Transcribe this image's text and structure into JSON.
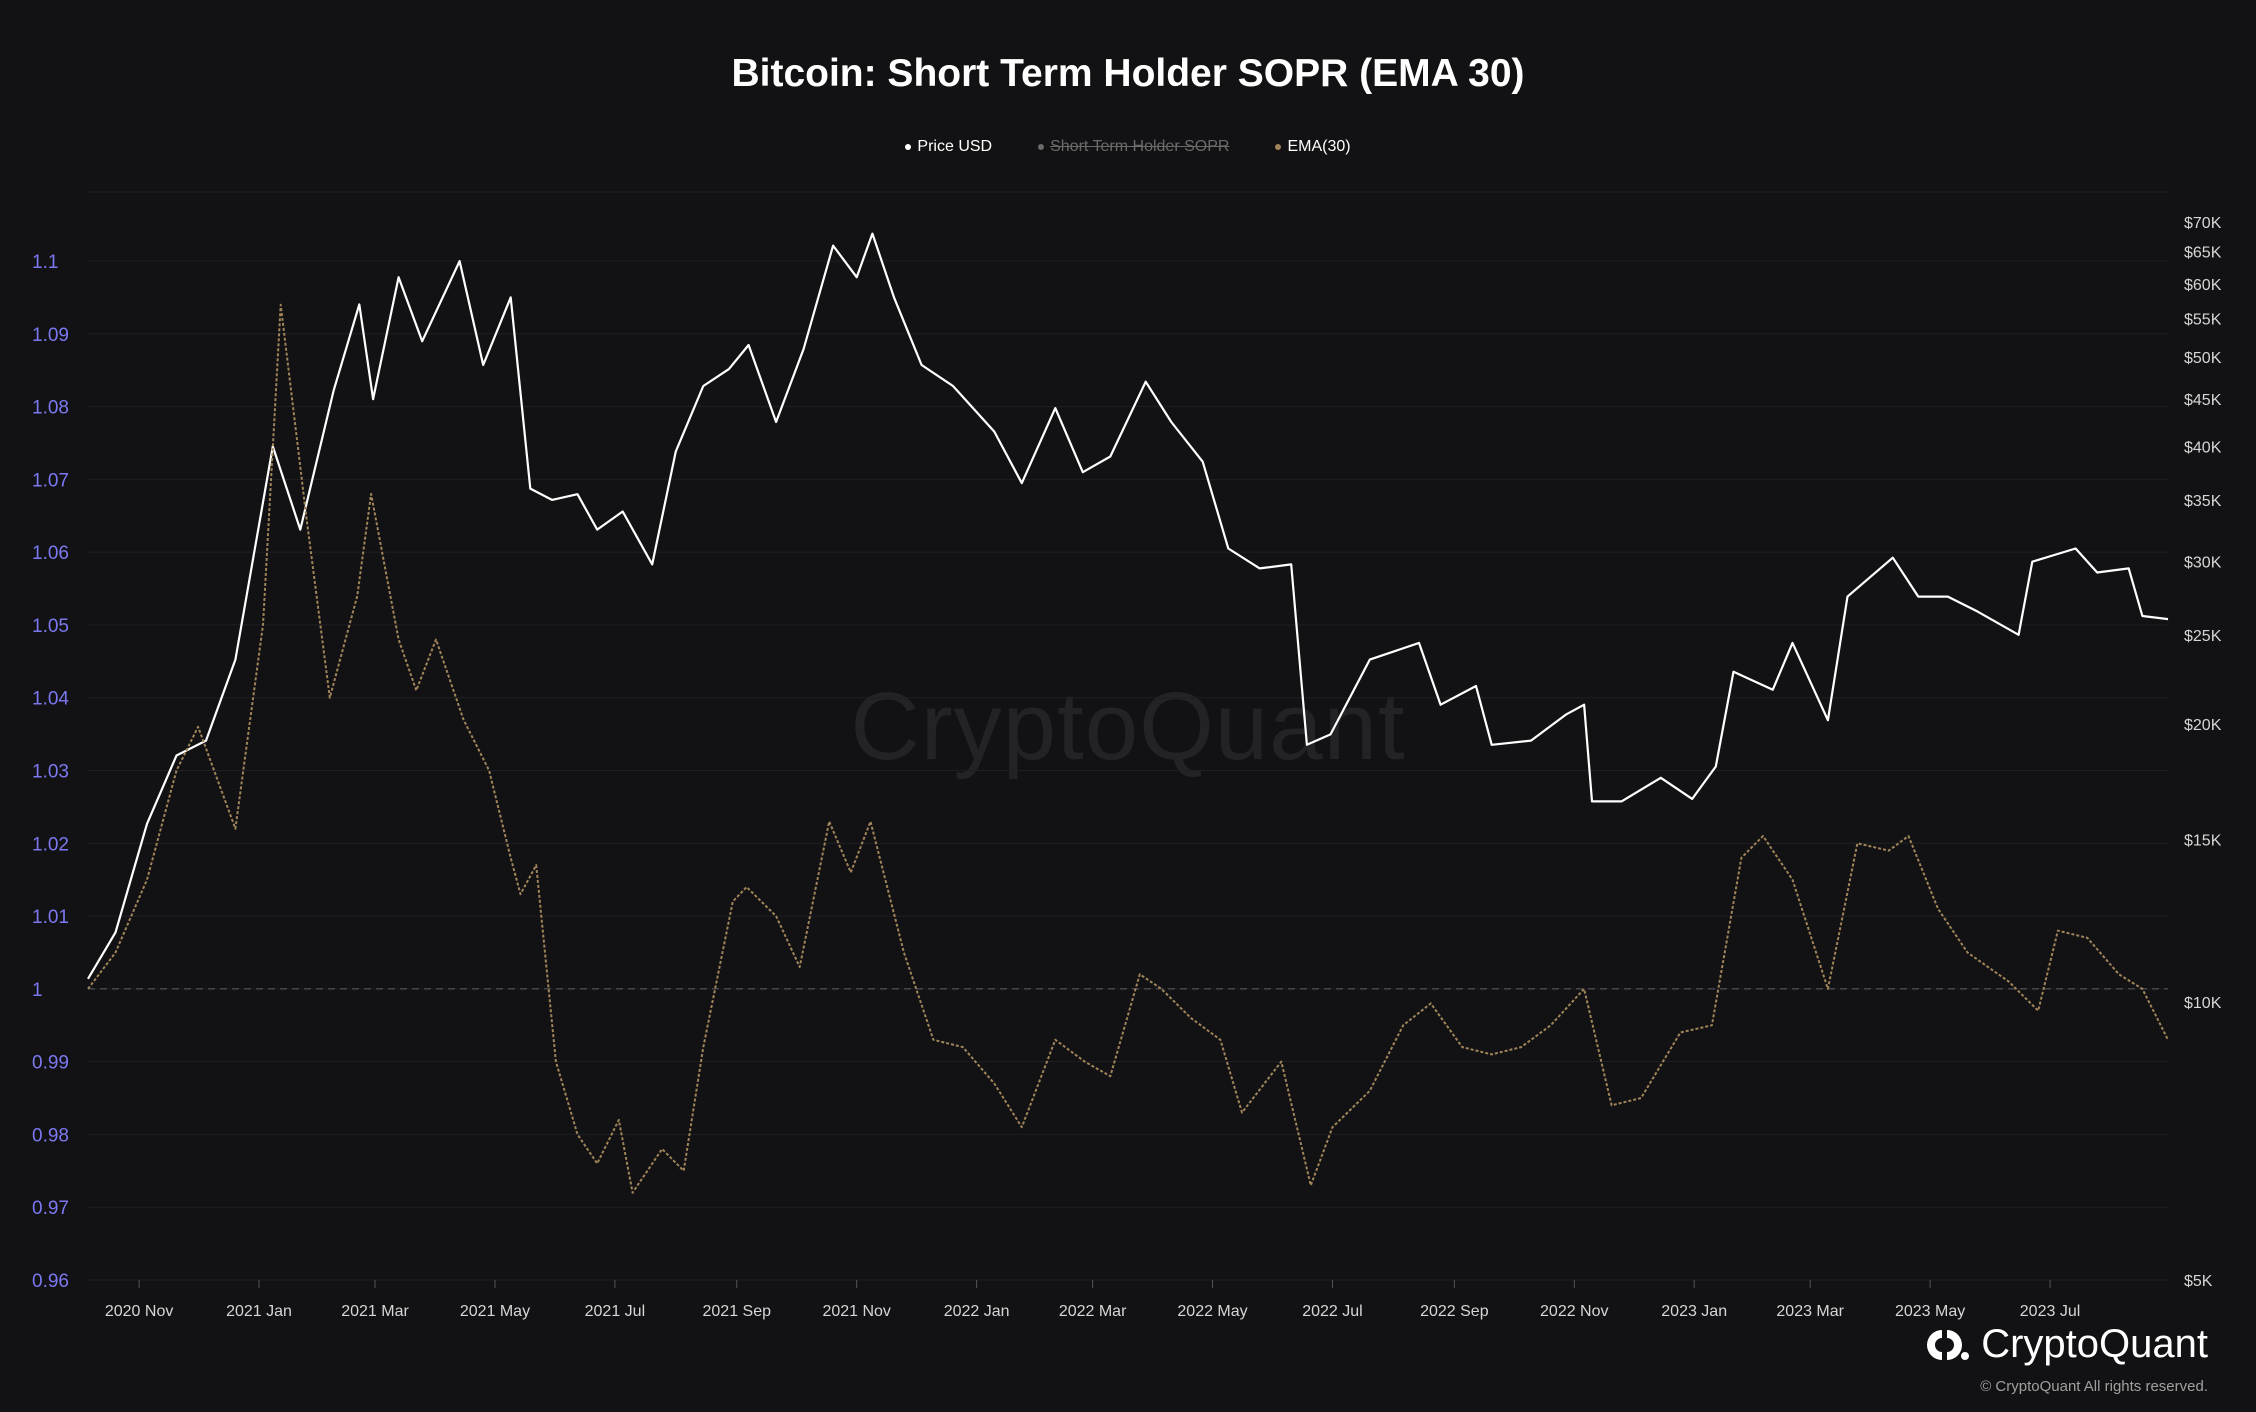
{
  "page": {
    "watermark": "CryptoQuant",
    "brand": "CryptoQuant",
    "copyright": "© CryptoQuant All rights reserved."
  },
  "chart_data": {
    "type": "line",
    "title": "Bitcoin: Short Term Holder SOPR (EMA 30)",
    "legend": [
      {
        "label": "Price USD",
        "color": "#ffffff",
        "hidden": false
      },
      {
        "label": "Short Term Holder SOPR",
        "color": "#6a6a6a",
        "hidden": true
      },
      {
        "label": "EMA(30)",
        "color": "#a0845a",
        "hidden": false
      }
    ],
    "x_ticks": [
      "2020 Nov",
      "2021 Jan",
      "2021 Mar",
      "2021 May",
      "2021 Jul",
      "2021 Sep",
      "2021 Nov",
      "2022 Jan",
      "2022 Mar",
      "2022 May",
      "2022 Jul",
      "2022 Sep",
      "2022 Nov",
      "2023 Jan",
      "2023 Mar",
      "2023 May",
      "2023 Jul"
    ],
    "x_range": [
      "2020-10-06",
      "2023-08-30"
    ],
    "y_left": {
      "ticks": [
        "1.1",
        "1.09",
        "1.08",
        "1.07",
        "1.06",
        "1.05",
        "1.04",
        "1.03",
        "1.02",
        "1.01",
        "1",
        "0.99",
        "0.98",
        "0.97",
        "0.96"
      ],
      "ylim": [
        0.96,
        1.1
      ]
    },
    "y_right": {
      "scale": "log",
      "ticks": [
        "$70K",
        "$65K",
        "$60K",
        "$55K",
        "$50K",
        "$45K",
        "$40K",
        "$35K",
        "$30K",
        "$25K",
        "$20K",
        "$15K",
        "$10K",
        "$5K"
      ],
      "ylim": [
        5000,
        70000
      ]
    },
    "reference_line": 1,
    "series": [
      {
        "name": "Price USD",
        "axis": "right",
        "color": "#ffffff",
        "points": [
          [
            "2020-10-06",
            10600
          ],
          [
            "2020-10-20",
            11900
          ],
          [
            "2020-11-05",
            15600
          ],
          [
            "2020-11-20",
            18500
          ],
          [
            "2020-12-05",
            19200
          ],
          [
            "2020-12-20",
            23500
          ],
          [
            "2021-01-08",
            40000
          ],
          [
            "2021-01-22",
            32500
          ],
          [
            "2021-02-08",
            46000
          ],
          [
            "2021-02-21",
            57000
          ],
          [
            "2021-02-28",
            45000
          ],
          [
            "2021-03-13",
            61000
          ],
          [
            "2021-03-25",
            52000
          ],
          [
            "2021-04-13",
            63500
          ],
          [
            "2021-04-25",
            49000
          ],
          [
            "2021-05-09",
            58000
          ],
          [
            "2021-05-19",
            36000
          ],
          [
            "2021-05-30",
            35000
          ],
          [
            "2021-06-12",
            35500
          ],
          [
            "2021-06-22",
            32500
          ],
          [
            "2021-07-05",
            34000
          ],
          [
            "2021-07-20",
            29800
          ],
          [
            "2021-08-01",
            39500
          ],
          [
            "2021-08-15",
            46500
          ],
          [
            "2021-08-28",
            48500
          ],
          [
            "2021-09-07",
            51500
          ],
          [
            "2021-09-21",
            42500
          ],
          [
            "2021-10-05",
            51000
          ],
          [
            "2021-10-20",
            66000
          ],
          [
            "2021-11-01",
            61000
          ],
          [
            "2021-11-09",
            68000
          ],
          [
            "2021-11-20",
            58000
          ],
          [
            "2021-12-04",
            49000
          ],
          [
            "2021-12-20",
            46500
          ],
          [
            "2022-01-10",
            41500
          ],
          [
            "2022-01-24",
            36500
          ],
          [
            "2022-02-10",
            44000
          ],
          [
            "2022-02-24",
            37500
          ],
          [
            "2022-03-10",
            39000
          ],
          [
            "2022-03-28",
            47000
          ],
          [
            "2022-04-10",
            42500
          ],
          [
            "2022-04-26",
            38500
          ],
          [
            "2022-05-09",
            31000
          ],
          [
            "2022-05-25",
            29500
          ],
          [
            "2022-06-10",
            29800
          ],
          [
            "2022-06-18",
            19000
          ],
          [
            "2022-06-30",
            19500
          ],
          [
            "2022-07-20",
            23500
          ],
          [
            "2022-08-14",
            24500
          ],
          [
            "2022-08-25",
            21000
          ],
          [
            "2022-09-12",
            22000
          ],
          [
            "2022-09-20",
            19000
          ],
          [
            "2022-10-10",
            19200
          ],
          [
            "2022-10-28",
            20500
          ],
          [
            "2022-11-06",
            21000
          ],
          [
            "2022-11-10",
            16500
          ],
          [
            "2022-11-25",
            16500
          ],
          [
            "2022-12-15",
            17500
          ],
          [
            "2022-12-31",
            16600
          ],
          [
            "2023-01-12",
            18000
          ],
          [
            "2023-01-21",
            22800
          ],
          [
            "2023-02-10",
            21800
          ],
          [
            "2023-02-20",
            24500
          ],
          [
            "2023-03-10",
            20200
          ],
          [
            "2023-03-20",
            27500
          ],
          [
            "2023-04-12",
            30300
          ],
          [
            "2023-04-25",
            27500
          ],
          [
            "2023-05-10",
            27500
          ],
          [
            "2023-05-25",
            26500
          ],
          [
            "2023-06-15",
            25000
          ],
          [
            "2023-06-22",
            30000
          ],
          [
            "2023-07-14",
            31000
          ],
          [
            "2023-07-25",
            29200
          ],
          [
            "2023-08-10",
            29500
          ],
          [
            "2023-08-17",
            26200
          ],
          [
            "2023-08-30",
            26000
          ]
        ]
      },
      {
        "name": "EMA(30)",
        "axis": "left",
        "color": "#a0845a",
        "points": [
          [
            "2020-10-06",
            1.0
          ],
          [
            "2020-10-20",
            1.005
          ],
          [
            "2020-11-05",
            1.015
          ],
          [
            "2020-11-20",
            1.03
          ],
          [
            "2020-12-01",
            1.036
          ],
          [
            "2020-12-20",
            1.022
          ],
          [
            "2021-01-03",
            1.05
          ],
          [
            "2021-01-12",
            1.094
          ],
          [
            "2021-01-25",
            1.065
          ],
          [
            "2021-02-06",
            1.04
          ],
          [
            "2021-02-20",
            1.054
          ],
          [
            "2021-02-27",
            1.068
          ],
          [
            "2021-03-13",
            1.048
          ],
          [
            "2021-03-22",
            1.041
          ],
          [
            "2021-04-01",
            1.048
          ],
          [
            "2021-04-15",
            1.037
          ],
          [
            "2021-04-28",
            1.03
          ],
          [
            "2021-05-09",
            1.018
          ],
          [
            "2021-05-14",
            1.013
          ],
          [
            "2021-05-22",
            1.017
          ],
          [
            "2021-06-01",
            0.99
          ],
          [
            "2021-06-12",
            0.98
          ],
          [
            "2021-06-22",
            0.976
          ],
          [
            "2021-07-03",
            0.982
          ],
          [
            "2021-07-10",
            0.972
          ],
          [
            "2021-07-25",
            0.978
          ],
          [
            "2021-08-05",
            0.975
          ],
          [
            "2021-08-15",
            0.992
          ],
          [
            "2021-08-30",
            1.012
          ],
          [
            "2021-09-06",
            1.014
          ],
          [
            "2021-09-21",
            1.01
          ],
          [
            "2021-10-03",
            1.003
          ],
          [
            "2021-10-18",
            1.023
          ],
          [
            "2021-10-29",
            1.016
          ],
          [
            "2021-11-08",
            1.023
          ],
          [
            "2021-11-25",
            1.005
          ],
          [
            "2021-12-10",
            0.993
          ],
          [
            "2021-12-25",
            0.992
          ],
          [
            "2022-01-10",
            0.987
          ],
          [
            "2022-01-24",
            0.981
          ],
          [
            "2022-02-10",
            0.993
          ],
          [
            "2022-02-25",
            0.99
          ],
          [
            "2022-03-10",
            0.988
          ],
          [
            "2022-03-25",
            1.002
          ],
          [
            "2022-04-05",
            1.0
          ],
          [
            "2022-04-20",
            0.996
          ],
          [
            "2022-05-05",
            0.993
          ],
          [
            "2022-05-16",
            0.983
          ],
          [
            "2022-06-05",
            0.99
          ],
          [
            "2022-06-20",
            0.973
          ],
          [
            "2022-07-01",
            0.981
          ],
          [
            "2022-07-20",
            0.986
          ],
          [
            "2022-08-06",
            0.995
          ],
          [
            "2022-08-20",
            0.998
          ],
          [
            "2022-09-05",
            0.992
          ],
          [
            "2022-09-20",
            0.991
          ],
          [
            "2022-10-05",
            0.992
          ],
          [
            "2022-10-20",
            0.995
          ],
          [
            "2022-11-06",
            1.0
          ],
          [
            "2022-11-20",
            0.984
          ],
          [
            "2022-12-05",
            0.985
          ],
          [
            "2022-12-25",
            0.994
          ],
          [
            "2023-01-10",
            0.995
          ],
          [
            "2023-01-25",
            1.018
          ],
          [
            "2023-02-05",
            1.021
          ],
          [
            "2023-02-20",
            1.015
          ],
          [
            "2023-03-10",
            1.0
          ],
          [
            "2023-03-25",
            1.02
          ],
          [
            "2023-04-10",
            1.019
          ],
          [
            "2023-04-20",
            1.021
          ],
          [
            "2023-05-05",
            1.011
          ],
          [
            "2023-05-20",
            1.005
          ],
          [
            "2023-06-10",
            1.001
          ],
          [
            "2023-06-25",
            0.997
          ],
          [
            "2023-07-05",
            1.008
          ],
          [
            "2023-07-20",
            1.007
          ],
          [
            "2023-08-05",
            1.002
          ],
          [
            "2023-08-17",
            1.0
          ],
          [
            "2023-08-30",
            0.993
          ]
        ]
      }
    ]
  }
}
